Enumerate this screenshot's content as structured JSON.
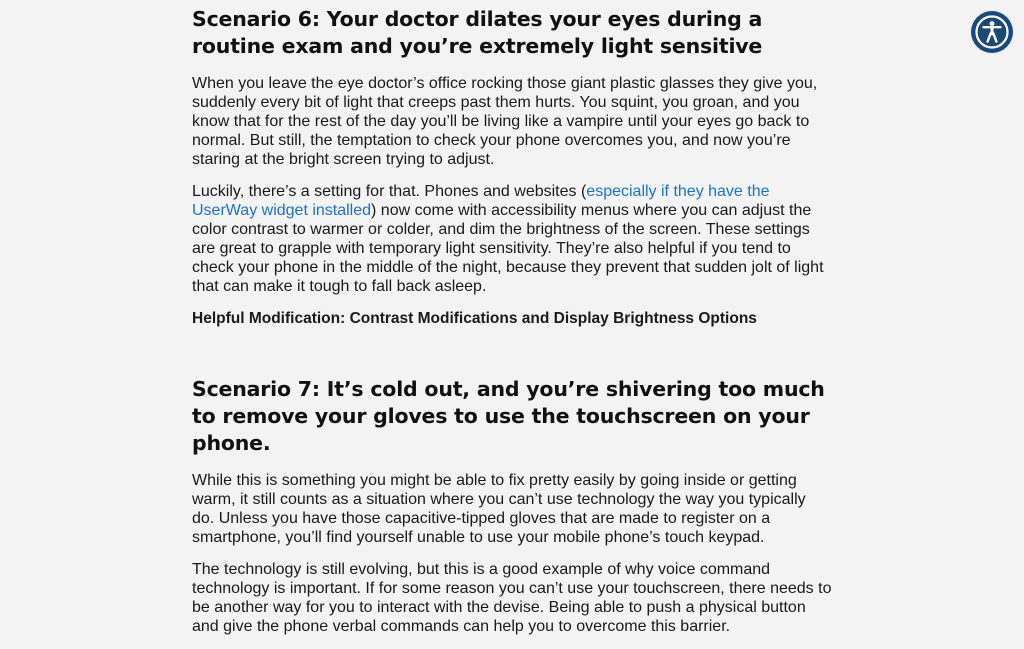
{
  "scenario6": {
    "heading": "Scenario 6: Your doctor dilates your eyes during a routine exam and you’re extremely light sensitive",
    "p1": "When you leave the eye doctor’s office rocking those giant plastic glasses they give you, suddenly every bit of light that creeps past them hurts. You squint, you groan, and you know that for the rest of the day you’ll be living like a vampire until your eyes go back to normal. But still, the temptation to check your phone overcomes you, and now you’re staring at the bright screen trying to adjust.",
    "p2_before": "Luckily, there’s a setting for that. Phones and websites (",
    "p2_link": "especially if they have the UserWay widget installed",
    "p2_after": ") now come with accessibility menus where you can adjust the color contrast to warmer or colder, and dim the brightness of the screen. These settings are great to grapple with temporary light sensitivity. They’re also helpful if you tend to check your phone in the middle of the night, because they prevent that sudden jolt of light that can make it tough to fall back asleep.",
    "modification": "Helpful Modification: Contrast Modifications and Display Brightness Options"
  },
  "scenario7": {
    "heading": "Scenario 7: It’s cold out, and you’re shivering too much to remove your gloves to use the touchscreen on your phone.",
    "p1": "While this is something you might be able to fix pretty easily by going inside or getting warm, it still counts as a situation where you can’t use technology the way you typically do. Unless you have those capacitive-tipped gloves that are made to register on a smartphone, you’ll find yourself unable to use your mobile phone’s touch keypad.",
    "p2": "The technology is still evolving, but this is a good example of why voice command technology is important. If for some reason you can’t use your touchscreen, there needs to be another way for you to interact with the devise. Being able to push a physical button and give the phone verbal commands can help you to overcome this barrier."
  },
  "accessibility_widget": {
    "icon": "accessibility-person-icon",
    "color": "#1b4a7a"
  }
}
